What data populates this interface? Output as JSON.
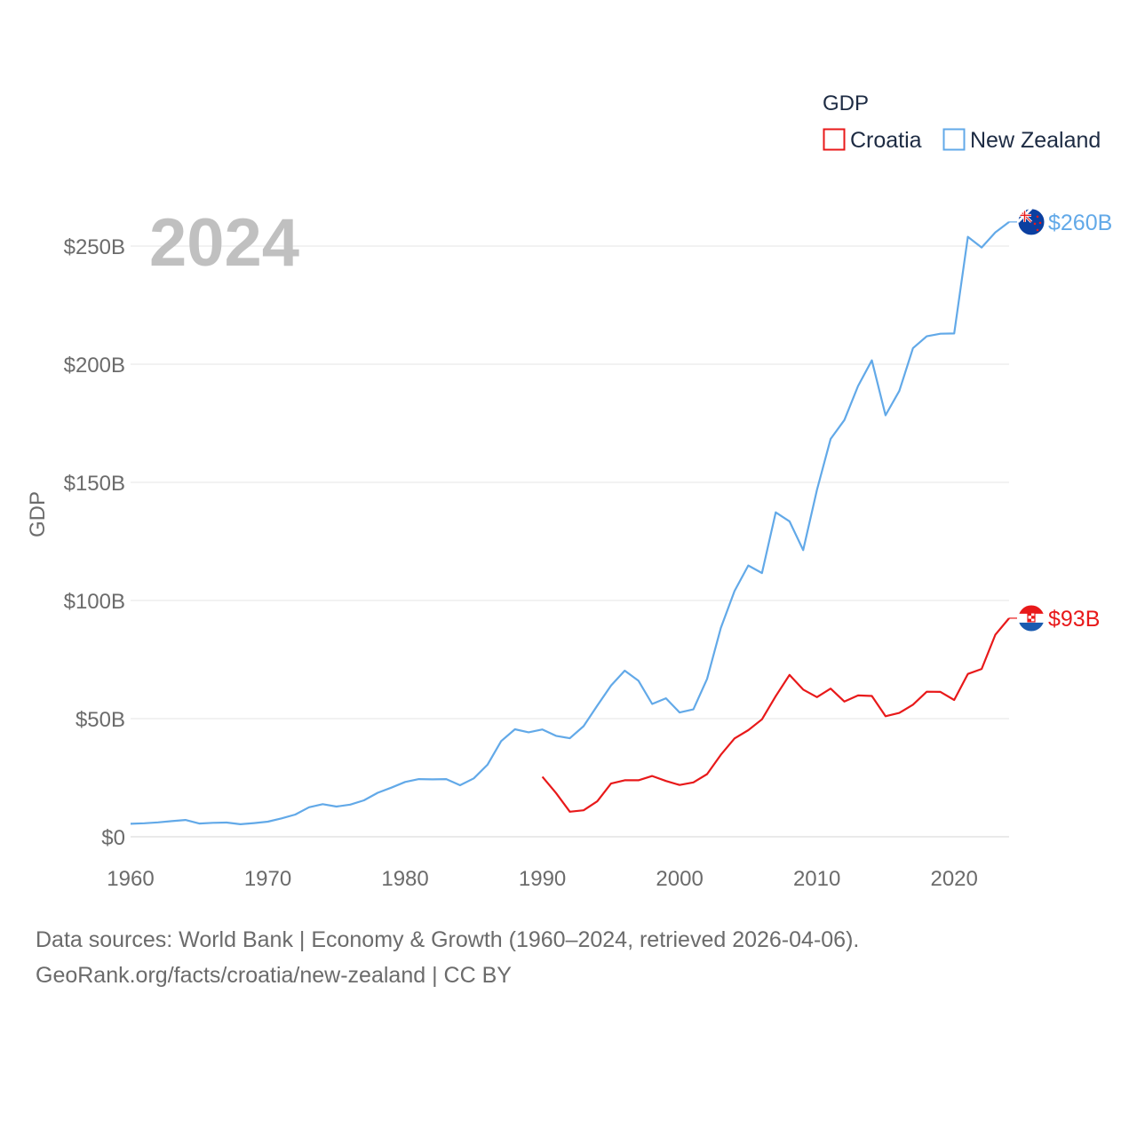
{
  "chart_data": {
    "type": "line",
    "title": "GDP",
    "year_label": "2024",
    "ylabel": "GDP",
    "xlabel": "",
    "xlim": [
      1960,
      2024
    ],
    "ylim": [
      0,
      250
    ],
    "y_unit": "billion USD",
    "x_ticks": [
      "1960",
      "1970",
      "1980",
      "1990",
      "2000",
      "2010",
      "2020"
    ],
    "y_ticks": [
      "$0",
      "$50B",
      "$100B",
      "$150B",
      "$200B",
      "$250B"
    ],
    "grid": true,
    "legend_position": "top-right",
    "series": [
      {
        "name": "Croatia",
        "color": "#e8191a",
        "end_label": "$93B",
        "flag": "croatia-flag",
        "points": [
          [
            1990,
            25.4
          ],
          [
            1991,
            18.5
          ],
          [
            1992,
            10.6
          ],
          [
            1993,
            11.2
          ],
          [
            1994,
            15.0
          ],
          [
            1995,
            22.5
          ],
          [
            1996,
            23.9
          ],
          [
            1997,
            23.9
          ],
          [
            1998,
            25.7
          ],
          [
            1999,
            23.6
          ],
          [
            2000,
            21.9
          ],
          [
            2001,
            23.0
          ],
          [
            2002,
            26.5
          ],
          [
            2003,
            34.7
          ],
          [
            2004,
            41.6
          ],
          [
            2005,
            45.1
          ],
          [
            2006,
            49.7
          ],
          [
            2007,
            59.5
          ],
          [
            2008,
            68.5
          ],
          [
            2009,
            62.3
          ],
          [
            2010,
            59.1
          ],
          [
            2011,
            62.7
          ],
          [
            2012,
            57.2
          ],
          [
            2013,
            59.8
          ],
          [
            2014,
            59.6
          ],
          [
            2015,
            51.0
          ],
          [
            2016,
            52.4
          ],
          [
            2017,
            55.9
          ],
          [
            2018,
            61.4
          ],
          [
            2019,
            61.3
          ],
          [
            2020,
            57.9
          ],
          [
            2021,
            68.9
          ],
          [
            2022,
            71.0
          ],
          [
            2023,
            85.5
          ],
          [
            2024,
            92.5
          ]
        ]
      },
      {
        "name": "New Zealand",
        "color": "#62a9e8",
        "end_label": "$260B",
        "flag": "new-zealand-flag",
        "points": [
          [
            1960,
            5.5
          ],
          [
            1961,
            5.7
          ],
          [
            1962,
            6.1
          ],
          [
            1963,
            6.6
          ],
          [
            1964,
            7.1
          ],
          [
            1965,
            5.6
          ],
          [
            1966,
            5.9
          ],
          [
            1967,
            6.0
          ],
          [
            1968,
            5.3
          ],
          [
            1969,
            5.8
          ],
          [
            1970,
            6.4
          ],
          [
            1971,
            7.8
          ],
          [
            1972,
            9.4
          ],
          [
            1973,
            12.5
          ],
          [
            1974,
            13.8
          ],
          [
            1975,
            12.8
          ],
          [
            1976,
            13.6
          ],
          [
            1977,
            15.4
          ],
          [
            1978,
            18.6
          ],
          [
            1979,
            20.8
          ],
          [
            1980,
            23.2
          ],
          [
            1981,
            24.4
          ],
          [
            1982,
            24.3
          ],
          [
            1983,
            24.4
          ],
          [
            1984,
            21.8
          ],
          [
            1985,
            24.7
          ],
          [
            1986,
            30.5
          ],
          [
            1987,
            40.5
          ],
          [
            1988,
            45.5
          ],
          [
            1989,
            44.2
          ],
          [
            1990,
            45.4
          ],
          [
            1991,
            42.7
          ],
          [
            1992,
            41.7
          ],
          [
            1993,
            46.8
          ],
          [
            1994,
            55.5
          ],
          [
            1995,
            64.0
          ],
          [
            1996,
            70.3
          ],
          [
            1997,
            66.0
          ],
          [
            1998,
            56.2
          ],
          [
            1999,
            58.6
          ],
          [
            2000,
            52.6
          ],
          [
            2001,
            53.9
          ],
          [
            2002,
            66.8
          ],
          [
            2003,
            88.4
          ],
          [
            2004,
            104.0
          ],
          [
            2005,
            114.8
          ],
          [
            2006,
            111.6
          ],
          [
            2007,
            137.3
          ],
          [
            2008,
            133.5
          ],
          [
            2009,
            121.3
          ],
          [
            2010,
            146.8
          ],
          [
            2011,
            168.4
          ],
          [
            2012,
            176.4
          ],
          [
            2013,
            190.8
          ],
          [
            2014,
            201.6
          ],
          [
            2015,
            178.4
          ],
          [
            2016,
            188.7
          ],
          [
            2017,
            206.8
          ],
          [
            2018,
            211.8
          ],
          [
            2019,
            212.9
          ],
          [
            2020,
            213.0
          ],
          [
            2021,
            253.9
          ],
          [
            2022,
            249.4
          ],
          [
            2023,
            255.8
          ],
          [
            2024,
            260.2
          ]
        ]
      }
    ]
  },
  "footer": {
    "line1": "Data sources: World Bank | Economy & Growth (1960–2024, retrieved 2026-04-06).",
    "line2": "GeoRank.org/facts/croatia/new-zealand | CC BY"
  },
  "colors": {
    "grid": "#e6e6e6",
    "axis_text": "#6b6b6b",
    "year_watermark": "#c0c0c0",
    "legend_text": "#1d2b43"
  }
}
